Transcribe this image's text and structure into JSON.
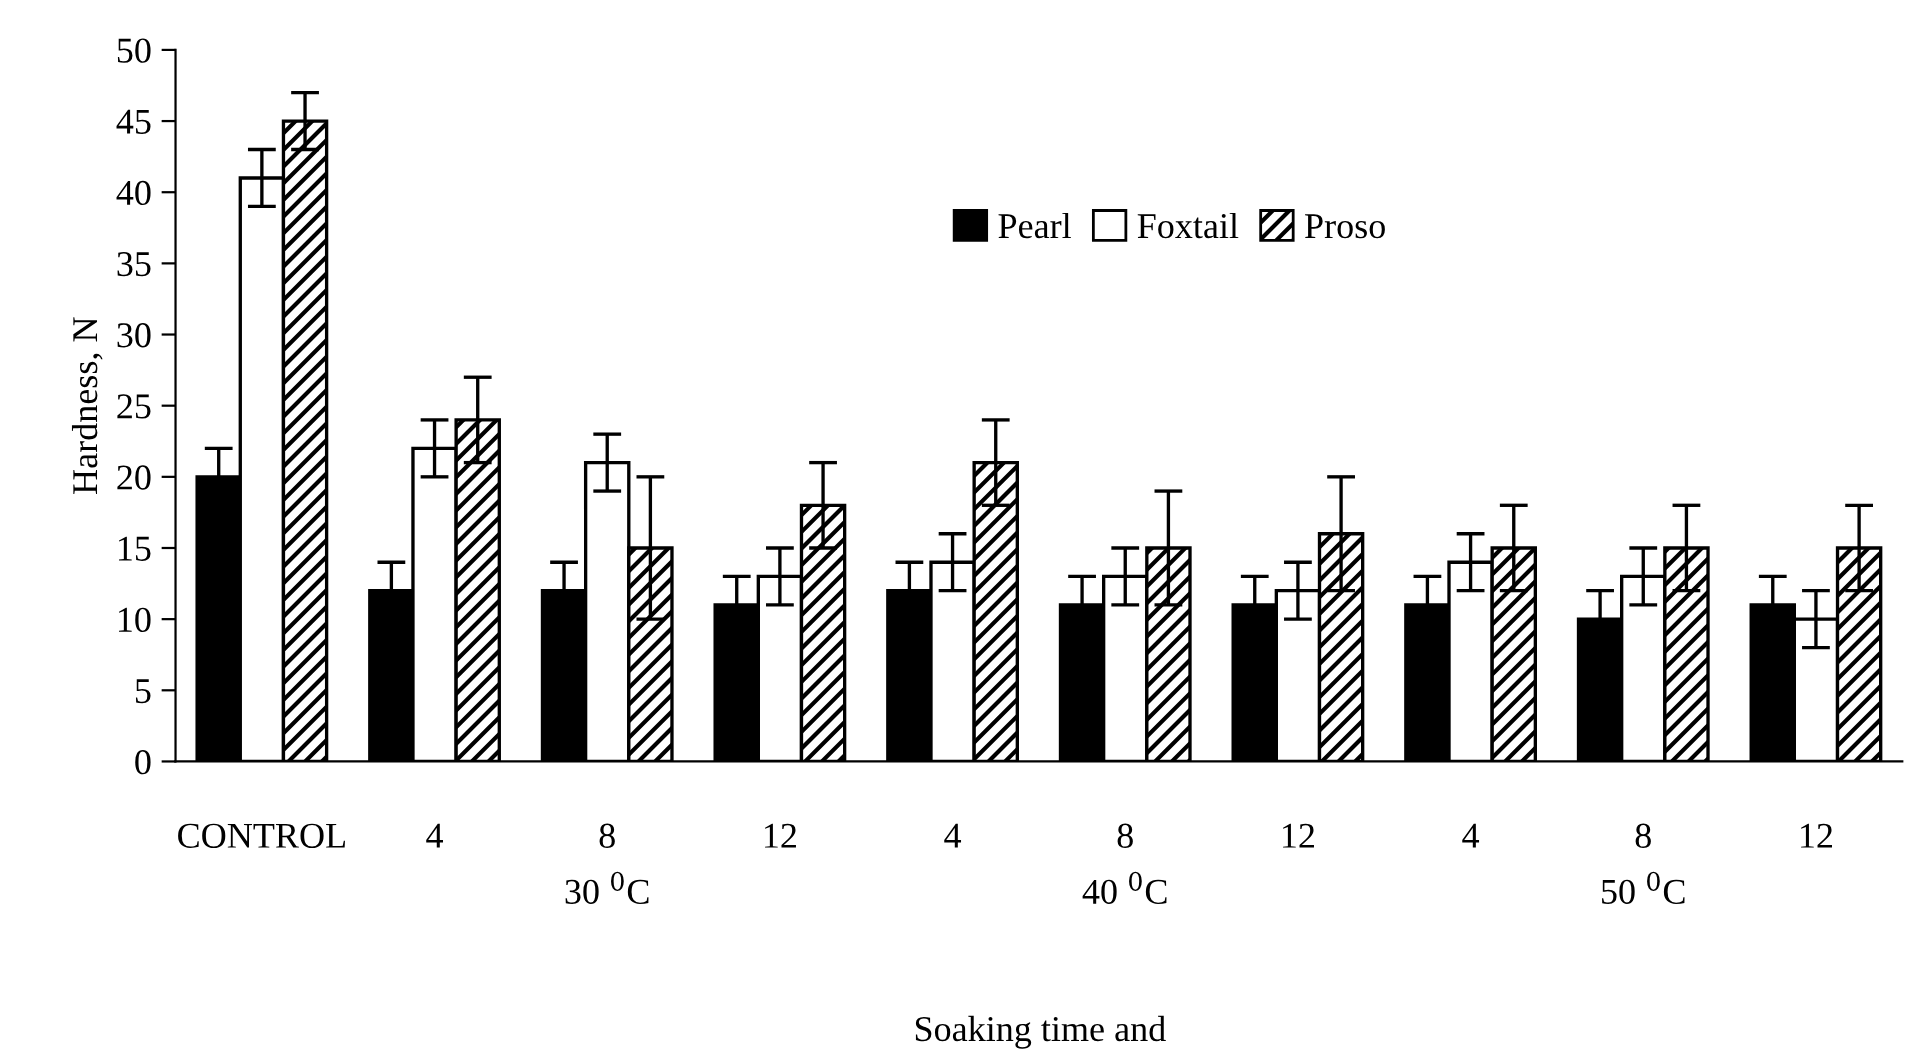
{
  "chart_data": {
    "type": "bar",
    "ylabel": "Hardness, N",
    "xlabel": "Soaking time and",
    "categories": [
      "CONTROL",
      "4",
      "8",
      "12",
      "4",
      "8",
      "12",
      "4",
      "8",
      "12"
    ],
    "series": [
      {
        "name": "Pearl",
        "color": "#000000",
        "values": [
          20,
          12,
          12,
          11,
          12,
          11,
          11,
          11,
          10,
          11
        ],
        "errors": [
          2,
          2,
          2,
          2,
          2,
          2,
          2,
          2,
          2,
          2
        ]
      },
      {
        "name": "Foxtail",
        "color": "#ffffff",
        "values": [
          41,
          22,
          21,
          13,
          14,
          13,
          12,
          14,
          13,
          10
        ],
        "errors": [
          2,
          2,
          2,
          2,
          2,
          2,
          2,
          2,
          2,
          2
        ]
      },
      {
        "name": "Proso",
        "color": "#000000",
        "values": [
          45,
          24,
          15,
          18,
          21,
          15,
          16,
          15,
          15,
          15
        ],
        "errors": [
          2,
          3,
          5,
          3,
          3,
          4,
          4,
          3,
          3,
          3
        ]
      }
    ],
    "annotations": [
      "30 $^{0}$C",
      "40 $^{0}$C",
      "50 $^{0}$C"
    ],
    "ylim": [
      0,
      50
    ],
    "yticks": [
      0,
      5,
      10,
      15,
      20,
      25,
      30,
      35,
      40,
      45,
      50
    ],
    "grid": false,
    "legend": "top right"
  }
}
